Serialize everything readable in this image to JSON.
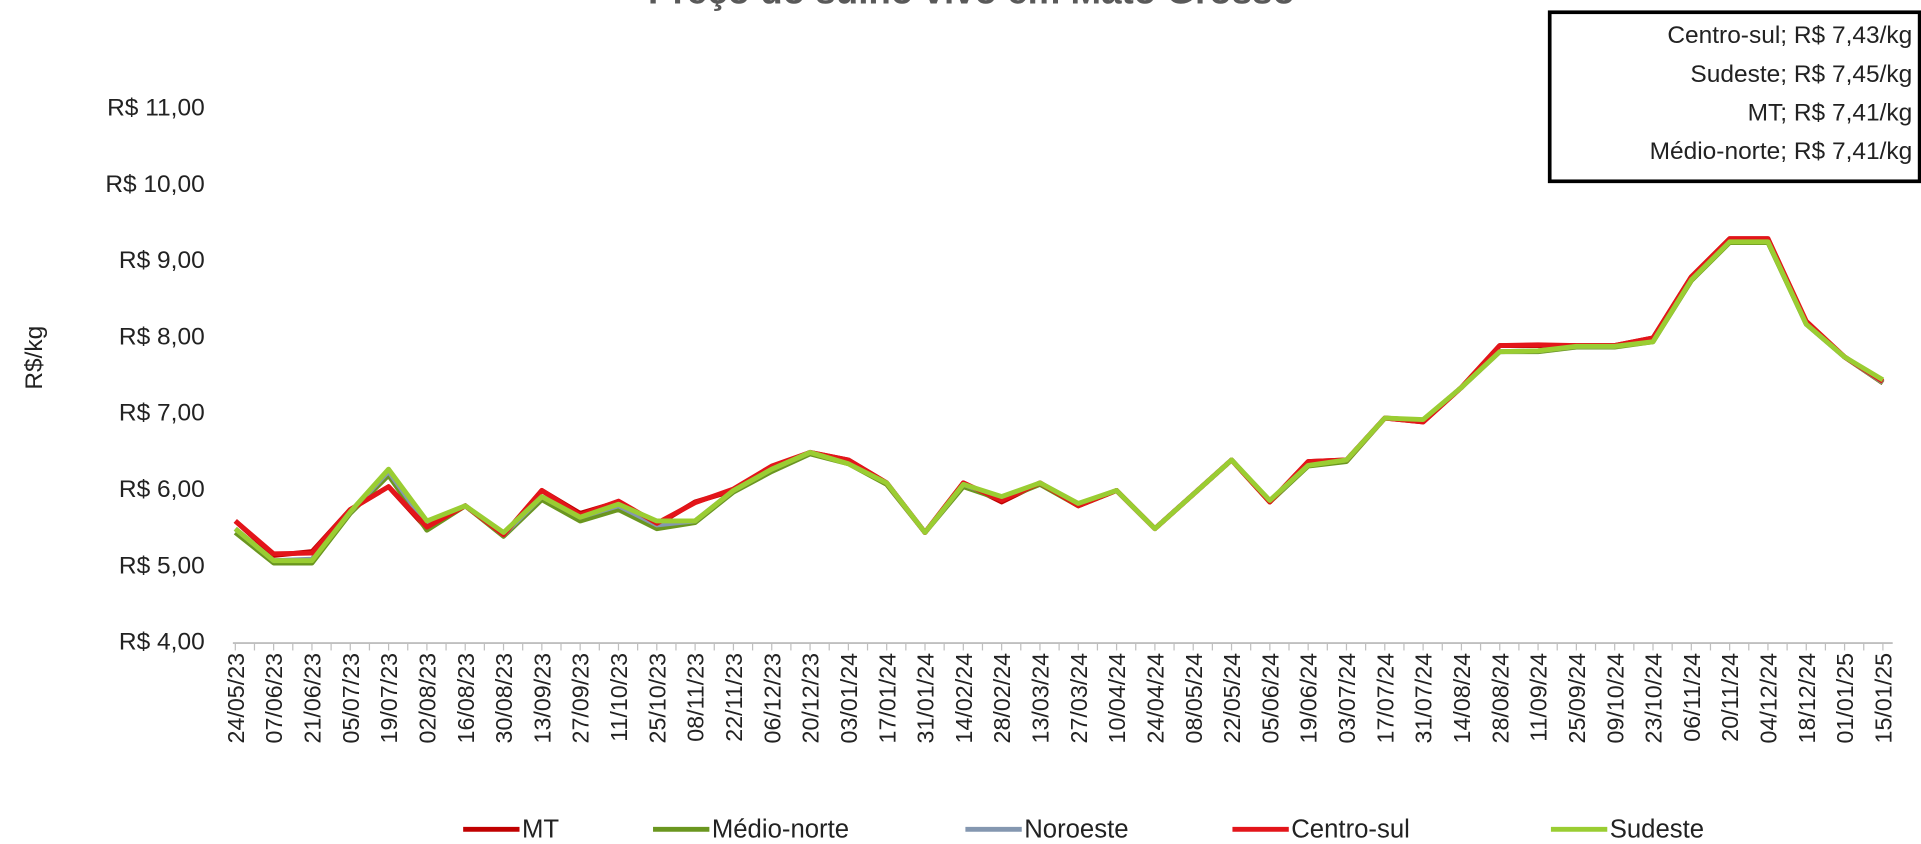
{
  "chart_data": {
    "type": "line",
    "title": "Preço do suíno vivo em Mato Grosso",
    "y_label": "R$/kg",
    "annotations": [
      "Centro-sul; R$ 7,43/kg",
      "Sudeste; R$ 7,45/kg",
      "MT; R$ 7,41/kg",
      "Médio-norte; R$ 7,41/kg"
    ],
    "categories": [
      "24/05/23",
      "07/06/23",
      "21/06/23",
      "05/07/23",
      "19/07/23",
      "02/08/23",
      "16/08/23",
      "30/08/23",
      "13/09/23",
      "27/09/23",
      "11/10/23",
      "25/10/23",
      "08/11/23",
      "22/11/23",
      "06/12/23",
      "20/12/23",
      "03/01/24",
      "17/01/24",
      "31/01/24",
      "14/02/24",
      "28/02/24",
      "13/03/24",
      "27/03/24",
      "10/04/24",
      "24/04/24",
      "08/05/24",
      "22/05/24",
      "05/06/24",
      "19/06/24",
      "03/07/24",
      "17/07/24",
      "31/07/24",
      "14/08/24",
      "28/08/24",
      "11/09/24",
      "25/09/24",
      "09/10/24",
      "23/10/24",
      "06/11/24",
      "20/11/24",
      "04/12/24",
      "18/12/24",
      "01/01/25",
      "15/01/25"
    ],
    "series": [
      {
        "name": "MT",
        "color": "#c00000",
        "values": [
          5.6,
          5.15,
          5.2,
          5.75,
          6.05,
          5.5,
          5.8,
          5.42,
          6.0,
          5.7,
          5.85,
          5.55,
          5.85,
          6.0,
          6.3,
          6.5,
          6.4,
          6.1,
          5.45,
          6.1,
          5.85,
          6.1,
          5.8,
          6.0,
          5.5,
          5.95,
          6.4,
          5.85,
          6.38,
          6.4,
          6.95,
          6.9,
          7.35,
          7.9,
          7.9,
          7.9,
          7.9,
          8.0,
          8.8,
          9.3,
          9.3,
          8.2,
          7.75,
          7.41
        ]
      },
      {
        "name": "Médio-norte",
        "color": "#6a961f",
        "values": [
          5.45,
          5.05,
          5.05,
          5.7,
          6.2,
          5.48,
          5.8,
          5.4,
          5.88,
          5.6,
          5.75,
          5.5,
          5.58,
          5.98,
          6.25,
          6.48,
          6.35,
          6.08,
          5.45,
          6.05,
          5.88,
          6.08,
          5.8,
          6.0,
          5.5,
          5.95,
          6.4,
          5.85,
          6.32,
          6.38,
          6.95,
          6.92,
          7.35,
          7.82,
          7.82,
          7.88,
          7.88,
          7.95,
          8.75,
          9.25,
          9.25,
          8.18,
          7.75,
          7.41
        ]
      },
      {
        "name": "Noroeste",
        "color": "#8497b0",
        "values": [
          5.5,
          5.08,
          5.1,
          5.72,
          6.25,
          5.55,
          5.8,
          5.42,
          5.92,
          5.65,
          5.8,
          5.55,
          5.6,
          6.0,
          6.28,
          6.5,
          6.38,
          6.1,
          5.45,
          6.08,
          5.9,
          6.1,
          5.82,
          6.0,
          5.5,
          5.95,
          6.4,
          5.86,
          6.34,
          6.4,
          6.95,
          6.92,
          7.35,
          7.82,
          7.83,
          7.89,
          7.89,
          7.96,
          8.77,
          9.27,
          9.27,
          8.18,
          7.75,
          7.42
        ]
      },
      {
        "name": "Centro-sul",
        "color": "#e3151a",
        "values": [
          5.6,
          5.17,
          5.18,
          5.75,
          6.05,
          5.52,
          5.8,
          5.42,
          6.0,
          5.68,
          5.86,
          5.57,
          5.84,
          6.02,
          6.32,
          6.5,
          6.4,
          6.1,
          5.45,
          6.1,
          5.87,
          6.1,
          5.8,
          6.0,
          5.5,
          5.95,
          6.4,
          5.85,
          6.38,
          6.4,
          6.95,
          6.9,
          7.35,
          7.9,
          7.91,
          7.9,
          7.9,
          8.0,
          8.8,
          9.3,
          9.3,
          8.22,
          7.75,
          7.43
        ]
      },
      {
        "name": "Sudeste",
        "color": "#9acd32",
        "values": [
          5.5,
          5.08,
          5.08,
          5.72,
          6.28,
          5.6,
          5.8,
          5.45,
          5.92,
          5.65,
          5.82,
          5.6,
          5.6,
          6.0,
          6.28,
          6.5,
          6.35,
          6.1,
          5.45,
          6.08,
          5.92,
          6.1,
          5.83,
          6.0,
          5.5,
          5.95,
          6.4,
          5.87,
          6.33,
          6.4,
          6.95,
          6.93,
          7.35,
          7.82,
          7.83,
          7.89,
          7.89,
          7.95,
          8.76,
          9.26,
          9.26,
          8.18,
          7.75,
          7.45
        ]
      }
    ],
    "ylim": [
      4,
      11
    ],
    "yticks": [
      {
        "value": 4,
        "label": "R$ 4,00"
      },
      {
        "value": 5,
        "label": "R$ 5,00"
      },
      {
        "value": 6,
        "label": "R$ 6,00"
      },
      {
        "value": 7,
        "label": "R$ 7,00"
      },
      {
        "value": 8,
        "label": "R$ 8,00"
      },
      {
        "value": 9,
        "label": "R$ 9,00"
      },
      {
        "value": 10,
        "label": "R$ 10,00"
      },
      {
        "value": 11,
        "label": "R$ 11,00"
      }
    ],
    "grid": false,
    "legend": "bottom"
  }
}
